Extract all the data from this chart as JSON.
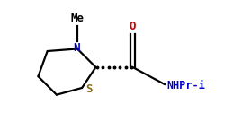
{
  "bg_color": "#ffffff",
  "ring_color": "#000000",
  "bond_color": "#000000",
  "N_color": "#0000cd",
  "S_color": "#8b6914",
  "O_color": "#cc0000",
  "NHPri_color": "#0000cd",
  "Me_color": "#000000",
  "figsize": [
    2.59,
    1.55
  ],
  "dpi": 100,
  "xlim": [
    0,
    10
  ],
  "ylim": [
    0,
    6
  ]
}
